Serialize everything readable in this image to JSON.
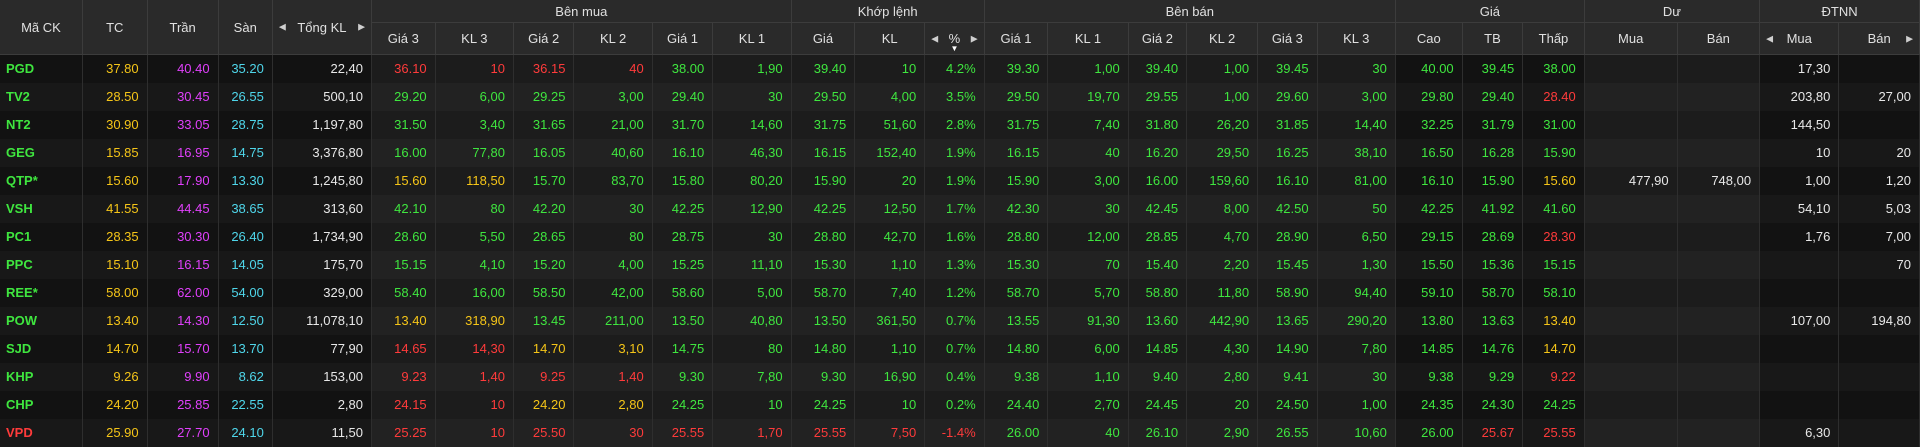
{
  "colors": {
    "up": "#3fe63f",
    "down": "#ff3b3b",
    "ref": "#f5c518",
    "ceil": "#e040fb",
    "floor": "#4fd6ea",
    "neutral": "#e8e8e8"
  },
  "headers": {
    "ma_ck": "Mã CK",
    "tc": "TC",
    "tran": "Trần",
    "san": "Sàn",
    "tong_kl": "Tổng KL",
    "ben_mua": "Bên mua",
    "khop_lenh": "Khớp lệnh",
    "ben_ban": "Bên bán",
    "gia": "Giá",
    "du": "Dư",
    "dtnn": "ĐTNN",
    "gia3": "Giá 3",
    "kl3": "KL 3",
    "gia2": "Giá 2",
    "kl2": "KL 2",
    "gia1": "Giá 1",
    "kl1": "KL 1",
    "kl_gia": "Giá",
    "kl_kl": "KL",
    "pct": "%",
    "cao": "Cao",
    "tb": "TB",
    "thap": "Thấp",
    "du_mua": "Mua",
    "du_ban": "Bán",
    "nn_mua": "Mua",
    "nn_ban": "Bán"
  },
  "rows": [
    {
      "sym": "PGD",
      "tc": "37.80",
      "tran": "40.40",
      "san": "35.20",
      "tong": "22,40",
      "bg3": "36.10",
      "bk3": "10",
      "bg2": "36.15",
      "bk2": "40",
      "bg1": "38.00",
      "bk1": "1,90",
      "mg": "39.40",
      "mk": "10",
      "pct": "4.2%",
      "sg1": "39.30",
      "sk1": "1,00",
      "sg2": "39.40",
      "sk2": "1,00",
      "sg3": "39.45",
      "sk3": "30",
      "cao": "40.00",
      "tb": "39.45",
      "thap": "38.00",
      "dmua": "",
      "dban": "",
      "nnmua": "17,30",
      "nnban": ""
    },
    {
      "sym": "TV2",
      "tc": "28.50",
      "tran": "30.45",
      "san": "26.55",
      "tong": "500,10",
      "bg3": "29.20",
      "bk3": "6,00",
      "bg2": "29.25",
      "bk2": "3,00",
      "bg1": "29.40",
      "bk1": "30",
      "mg": "29.50",
      "mk": "4,00",
      "pct": "3.5%",
      "sg1": "29.50",
      "sk1": "19,70",
      "sg2": "29.55",
      "sk2": "1,00",
      "sg3": "29.60",
      "sk3": "3,00",
      "cao": "29.80",
      "tb": "29.40",
      "thap": "28.40",
      "dmua": "",
      "dban": "",
      "nnmua": "203,80",
      "nnban": "27,00"
    },
    {
      "sym": "NT2",
      "tc": "30.90",
      "tran": "33.05",
      "san": "28.75",
      "tong": "1,197,80",
      "bg3": "31.50",
      "bk3": "3,40",
      "bg2": "31.65",
      "bk2": "21,00",
      "bg1": "31.70",
      "bk1": "14,60",
      "mg": "31.75",
      "mk": "51,60",
      "pct": "2.8%",
      "sg1": "31.75",
      "sk1": "7,40",
      "sg2": "31.80",
      "sk2": "26,20",
      "sg3": "31.85",
      "sk3": "14,40",
      "cao": "32.25",
      "tb": "31.79",
      "thap": "31.00",
      "dmua": "",
      "dban": "",
      "nnmua": "144,50",
      "nnban": ""
    },
    {
      "sym": "GEG",
      "tc": "15.85",
      "tran": "16.95",
      "san": "14.75",
      "tong": "3,376,80",
      "bg3": "16.00",
      "bk3": "77,80",
      "bg2": "16.05",
      "bk2": "40,60",
      "bg1": "16.10",
      "bk1": "46,30",
      "mg": "16.15",
      "mk": "152,40",
      "pct": "1.9%",
      "sg1": "16.15",
      "sk1": "40",
      "sg2": "16.20",
      "sk2": "29,50",
      "sg3": "16.25",
      "sk3": "38,10",
      "cao": "16.50",
      "tb": "16.28",
      "thap": "15.90",
      "dmua": "",
      "dban": "",
      "nnmua": "10",
      "nnban": "20"
    },
    {
      "sym": "QTP*",
      "tc": "15.60",
      "tran": "17.90",
      "san": "13.30",
      "tong": "1,245,80",
      "bg3": "15.60",
      "bk3": "118,50",
      "bg2": "15.70",
      "bk2": "83,70",
      "bg1": "15.80",
      "bk1": "80,20",
      "mg": "15.90",
      "mk": "20",
      "pct": "1.9%",
      "sg1": "15.90",
      "sk1": "3,00",
      "sg2": "16.00",
      "sk2": "159,60",
      "sg3": "16.10",
      "sk3": "81,00",
      "cao": "16.10",
      "tb": "15.90",
      "thap": "15.60",
      "dmua": "477,90",
      "dban": "748,00",
      "nnmua": "1,00",
      "nnban": "1,20"
    },
    {
      "sym": "VSH",
      "tc": "41.55",
      "tran": "44.45",
      "san": "38.65",
      "tong": "313,60",
      "bg3": "42.10",
      "bk3": "80",
      "bg2": "42.20",
      "bk2": "30",
      "bg1": "42.25",
      "bk1": "12,90",
      "mg": "42.25",
      "mk": "12,50",
      "pct": "1.7%",
      "sg1": "42.30",
      "sk1": "30",
      "sg2": "42.45",
      "sk2": "8,00",
      "sg3": "42.50",
      "sk3": "50",
      "cao": "42.25",
      "tb": "41.92",
      "thap": "41.60",
      "dmua": "",
      "dban": "",
      "nnmua": "54,10",
      "nnban": "5,03"
    },
    {
      "sym": "PC1",
      "tc": "28.35",
      "tran": "30.30",
      "san": "26.40",
      "tong": "1,734,90",
      "bg3": "28.60",
      "bk3": "5,50",
      "bg2": "28.65",
      "bk2": "80",
      "bg1": "28.75",
      "bk1": "30",
      "mg": "28.80",
      "mk": "42,70",
      "pct": "1.6%",
      "sg1": "28.80",
      "sk1": "12,00",
      "sg2": "28.85",
      "sk2": "4,70",
      "sg3": "28.90",
      "sk3": "6,50",
      "cao": "29.15",
      "tb": "28.69",
      "thap": "28.30",
      "dmua": "",
      "dban": "",
      "nnmua": "1,76",
      "nnban": "7,00"
    },
    {
      "sym": "PPC",
      "tc": "15.10",
      "tran": "16.15",
      "san": "14.05",
      "tong": "175,70",
      "bg3": "15.15",
      "bk3": "4,10",
      "bg2": "15.20",
      "bk2": "4,00",
      "bg1": "15.25",
      "bk1": "11,10",
      "mg": "15.30",
      "mk": "1,10",
      "pct": "1.3%",
      "sg1": "15.30",
      "sk1": "70",
      "sg2": "15.40",
      "sk2": "2,20",
      "sg3": "15.45",
      "sk3": "1,30",
      "cao": "15.50",
      "tb": "15.36",
      "thap": "15.15",
      "dmua": "",
      "dban": "",
      "nnmua": "",
      "nnban": "70"
    },
    {
      "sym": "REE*",
      "tc": "58.00",
      "tran": "62.00",
      "san": "54.00",
      "tong": "329,00",
      "bg3": "58.40",
      "bk3": "16,00",
      "bg2": "58.50",
      "bk2": "42,00",
      "bg1": "58.60",
      "bk1": "5,00",
      "mg": "58.70",
      "mk": "7,40",
      "pct": "1.2%",
      "sg1": "58.70",
      "sk1": "5,70",
      "sg2": "58.80",
      "sk2": "11,80",
      "sg3": "58.90",
      "sk3": "94,40",
      "cao": "59.10",
      "tb": "58.70",
      "thap": "58.10",
      "dmua": "",
      "dban": "",
      "nnmua": "",
      "nnban": ""
    },
    {
      "sym": "POW",
      "tc": "13.40",
      "tran": "14.30",
      "san": "12.50",
      "tong": "11,078,10",
      "bg3": "13.40",
      "bk3": "318,90",
      "bg2": "13.45",
      "bk2": "211,00",
      "bg1": "13.50",
      "bk1": "40,80",
      "mg": "13.50",
      "mk": "361,50",
      "pct": "0.7%",
      "sg1": "13.55",
      "sk1": "91,30",
      "sg2": "13.60",
      "sk2": "442,90",
      "sg3": "13.65",
      "sk3": "290,20",
      "cao": "13.80",
      "tb": "13.63",
      "thap": "13.40",
      "dmua": "",
      "dban": "",
      "nnmua": "107,00",
      "nnban": "194,80"
    },
    {
      "sym": "SJD",
      "tc": "14.70",
      "tran": "15.70",
      "san": "13.70",
      "tong": "77,90",
      "bg3": "14.65",
      "bk3": "14,30",
      "bg2": "14.70",
      "bk2": "3,10",
      "bg1": "14.75",
      "bk1": "80",
      "mg": "14.80",
      "mk": "1,10",
      "pct": "0.7%",
      "sg1": "14.80",
      "sk1": "6,00",
      "sg2": "14.85",
      "sk2": "4,30",
      "sg3": "14.90",
      "sk3": "7,80",
      "cao": "14.85",
      "tb": "14.76",
      "thap": "14.70",
      "dmua": "",
      "dban": "",
      "nnmua": "",
      "nnban": ""
    },
    {
      "sym": "KHP",
      "tc": "9.26",
      "tran": "9.90",
      "san": "8.62",
      "tong": "153,00",
      "bg3": "9.23",
      "bk3": "1,40",
      "bg2": "9.25",
      "bk2": "1,40",
      "bg1": "9.30",
      "bk1": "7,80",
      "mg": "9.30",
      "mk": "16,90",
      "pct": "0.4%",
      "sg1": "9.38",
      "sk1": "1,10",
      "sg2": "9.40",
      "sk2": "2,80",
      "sg3": "9.41",
      "sk3": "30",
      "cao": "9.38",
      "tb": "9.29",
      "thap": "9.22",
      "dmua": "",
      "dban": "",
      "nnmua": "",
      "nnban": ""
    },
    {
      "sym": "CHP",
      "tc": "24.20",
      "tran": "25.85",
      "san": "22.55",
      "tong": "2,80",
      "bg3": "24.15",
      "bk3": "10",
      "bg2": "24.20",
      "bk2": "2,80",
      "bg1": "24.25",
      "bk1": "10",
      "mg": "24.25",
      "mk": "10",
      "pct": "0.2%",
      "sg1": "24.40",
      "sk1": "2,70",
      "sg2": "24.45",
      "sk2": "20",
      "sg3": "24.50",
      "sk3": "1,00",
      "cao": "24.35",
      "tb": "24.30",
      "thap": "24.25",
      "dmua": "",
      "dban": "",
      "nnmua": "",
      "nnban": ""
    },
    {
      "sym": "VPD",
      "tc": "25.90",
      "tran": "27.70",
      "san": "24.10",
      "tong": "11,50",
      "bg3": "25.25",
      "bk3": "10",
      "bg2": "25.50",
      "bk2": "30",
      "bg1": "25.55",
      "bk1": "1,70",
      "mg": "25.55",
      "mk": "7,50",
      "pct": "-1.4%",
      "sg1": "26.00",
      "sk1": "40",
      "sg2": "26.10",
      "sk2": "2,90",
      "sg3": "26.55",
      "sk3": "10,60",
      "cao": "26.00",
      "tb": "25.67",
      "thap": "25.55",
      "dmua": "",
      "dban": "",
      "nnmua": "6,30",
      "nnban": ""
    }
  ]
}
